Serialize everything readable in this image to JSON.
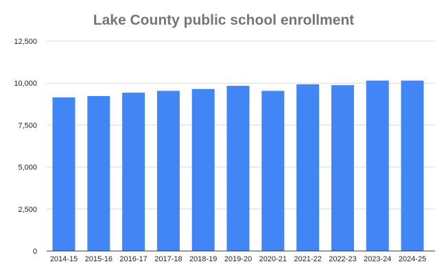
{
  "chart_data": {
    "type": "bar",
    "title": "Lake County public school enrollment",
    "xlabel": "",
    "ylabel": "",
    "categories": [
      "2014-15",
      "2015-16",
      "2016-17",
      "2017-18",
      "2018-19",
      "2019-20",
      "2020-21",
      "2021-22",
      "2022-23",
      "2023-24",
      "2024-25"
    ],
    "values": [
      9150,
      9230,
      9430,
      9540,
      9650,
      9840,
      9540,
      9930,
      9880,
      10150,
      10150
    ],
    "ylim": [
      0,
      12500
    ],
    "yticks": [
      0,
      2500,
      5000,
      7500,
      10000,
      12500
    ],
    "ytick_labels": [
      "0",
      "2,500",
      "5,000",
      "7,500",
      "10,000",
      "12,500"
    ],
    "grid": true,
    "legend": "none",
    "colors": {
      "bar": "#4285f4",
      "title": "#757575",
      "grid": "#d9d9d9"
    }
  }
}
